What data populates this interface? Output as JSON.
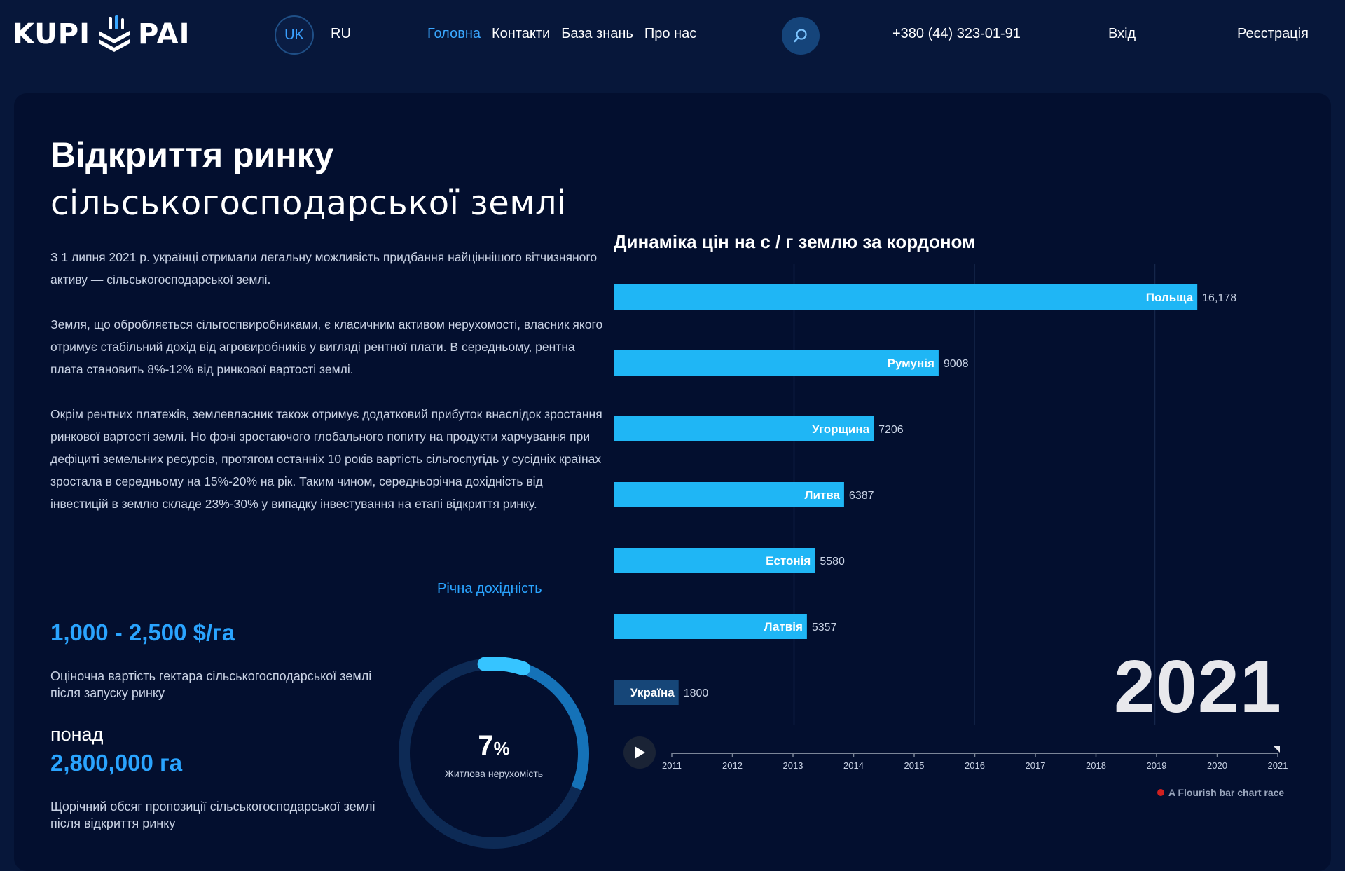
{
  "header": {
    "logo_left": "KUPI",
    "logo_right": "PAI",
    "lang_active": "UK",
    "lang_other": "RU",
    "nav": [
      {
        "label": "Головна",
        "active": true
      },
      {
        "label": "Контакти",
        "active": false
      },
      {
        "label": "База знань",
        "active": false
      },
      {
        "label": "Про нас",
        "active": false
      }
    ],
    "phone": "+380 (44) 323-01-91",
    "login": "Вхід",
    "register": "Реєстрація"
  },
  "hero": {
    "title_bold": "Відкриття ринку",
    "title_light": "сільськогосподарської землі",
    "paragraphs": [
      "З 1 липня 2021 р. українці отримали легальну можливість придбання найціннішого вітчизняного активу — сільськогосподарської землі.",
      "Земля, що обробляється сільгоспвиробниками, є класичним активом нерухомості, власник якого отримує стабільний дохід від агровиробників у вигляді рентної плати. В середньому, рентна плата становить 8%-12% від ринкової вартості землі.",
      "Окрім рентних платежів, землевласник також отримує додатковий прибуток внаслідок зростання ринкової вартості землі. Но фоні зростаючого глобального попиту на продукти харчування при дефіциті земельних ресурсів, протягом останніх 10 років вартість сільгоспугідь у сусідніх країнах зростала в середньому на 15%-20% на рік. Таким чином, середньорічна дохідність від інвестицій в землю складе 23%-30% у випадку інвестування на етапі відкриття ринку."
    ]
  },
  "stats": {
    "annual_yield_label": "Річна дохідність",
    "price": "1,000 - 2,500 $/га",
    "price_desc": "Оціночна вартість гектара сільськогосподарської землі після запуску ринку",
    "over": "понад",
    "area": "2,800,000 га",
    "area_desc": "Щорічний обсяг пропозиції сільськогосподарської землі після відкриття ринку",
    "gauge_value": "7",
    "gauge_unit": "%",
    "gauge_fraction": 0.07,
    "gauge_label": "Житлова нерухомість"
  },
  "chart_data": {
    "type": "bar",
    "title": "Динаміка цін на с / г землю за кордоном",
    "categories": [
      "Польща",
      "Румунія",
      "Угорщина",
      "Литва",
      "Естонія",
      "Латвія",
      "Україна"
    ],
    "values": [
      16178,
      9008,
      7206,
      6387,
      5580,
      5357,
      1800
    ],
    "value_labels": [
      "16,178",
      "9008",
      "7206",
      "6387",
      "5580",
      "5357",
      "1800"
    ],
    "orientation": "horizontal",
    "xlim": [
      0,
      20000
    ],
    "grid": true,
    "current_year": "2021",
    "timeline_years": [
      "2011",
      "2012",
      "2013",
      "2014",
      "2015",
      "2016",
      "2017",
      "2018",
      "2019",
      "2020",
      "2021"
    ],
    "highlight_color": "#1fb6f5",
    "ukraine_color": "#164678",
    "attribution": "A Flourish bar chart race"
  }
}
